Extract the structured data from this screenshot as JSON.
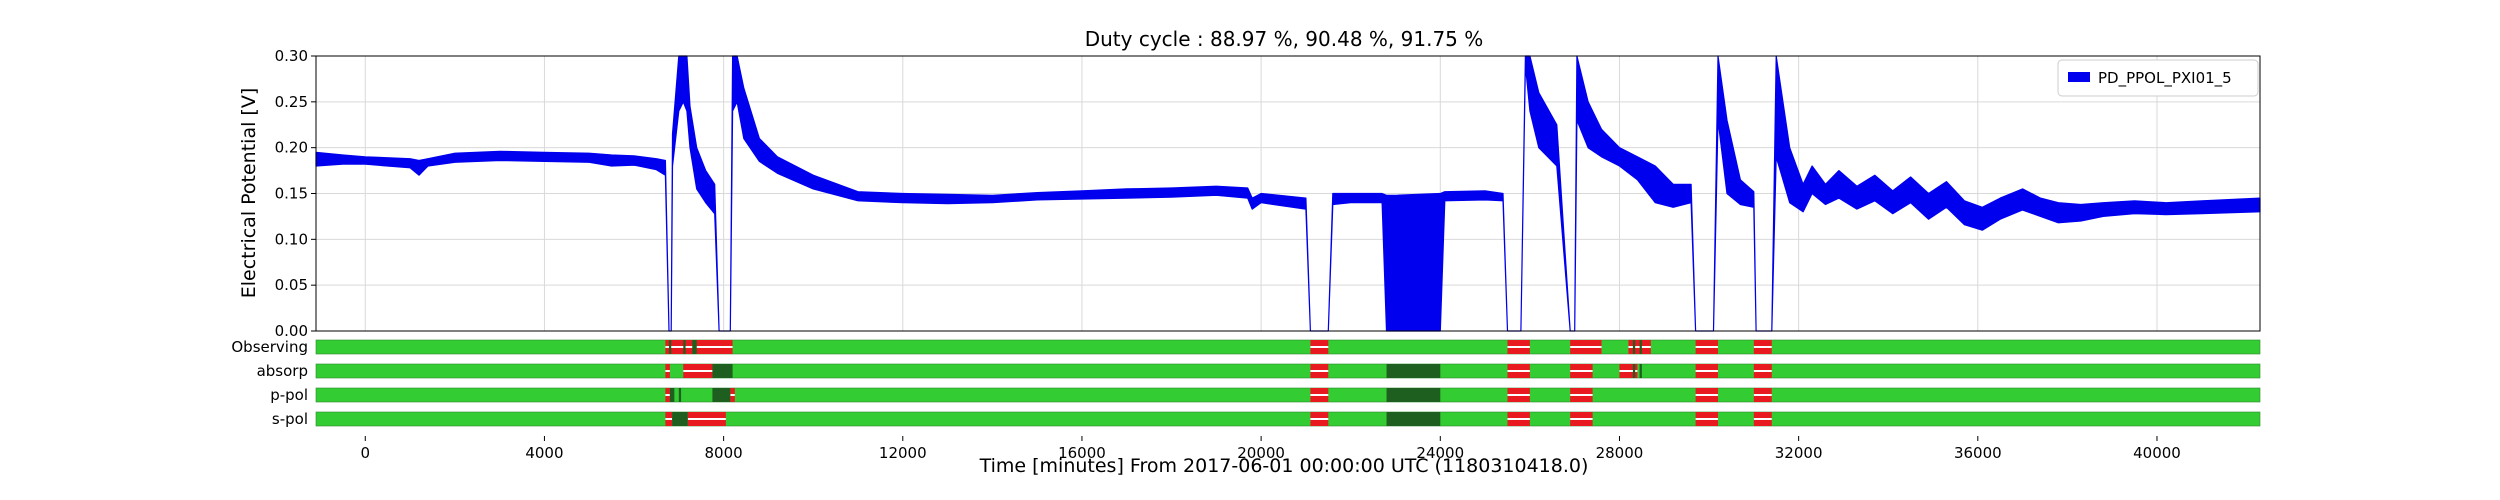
{
  "chart_data": {
    "type": "line",
    "title": "Duty cycle : 88.97 %, 90.48 %, 91.75 %",
    "xlabel": "Time [minutes] From 2017-06-01 00:00:00 UTC (1180310418.0)",
    "ylabel": "Electrical Potential [V]",
    "xlim": [
      -1100,
      42300
    ],
    "ylim": [
      0.0,
      0.3
    ],
    "xticks": [
      0,
      4000,
      8000,
      12000,
      16000,
      20000,
      24000,
      28000,
      32000,
      36000,
      40000
    ],
    "yticks": [
      "0.00",
      "0.05",
      "0.10",
      "0.15",
      "0.20",
      "0.25",
      "0.30"
    ],
    "grid": true,
    "legend": {
      "position": "top-right",
      "entries": [
        "PD_PPOL_PXI01_5"
      ]
    },
    "colors": {
      "series": "#0000ee",
      "state_on": "#33cc33",
      "state_off": "#e8191f",
      "state_dark": "#1e5e1e",
      "grid": "#d9d9d9"
    },
    "series": [
      {
        "name": "PD_PPOL_PXI01_5",
        "band": [
          [
            -1100,
            0.18,
            0.195
          ],
          [
            -500,
            0.182,
            0.192
          ],
          [
            0,
            0.182,
            0.19
          ],
          [
            1000,
            0.178,
            0.188
          ],
          [
            1200,
            0.17,
            0.186
          ],
          [
            1400,
            0.18,
            0.188
          ],
          [
            2000,
            0.184,
            0.194
          ],
          [
            3000,
            0.186,
            0.196
          ],
          [
            4000,
            0.185,
            0.195
          ],
          [
            5000,
            0.184,
            0.194
          ],
          [
            5500,
            0.18,
            0.192
          ],
          [
            6000,
            0.181,
            0.191
          ],
          [
            6500,
            0.176,
            0.188
          ],
          [
            6700,
            0.17,
            0.186
          ],
          [
            6780,
            0.0,
            0.0
          ],
          [
            6830,
            0.0,
            0.0
          ],
          [
            6860,
            0.18,
            0.215
          ],
          [
            7000,
            0.24,
            0.3
          ],
          [
            7100,
            0.25,
            0.3
          ],
          [
            7180,
            0.24,
            0.3
          ],
          [
            7250,
            0.2,
            0.245
          ],
          [
            7400,
            0.155,
            0.2
          ],
          [
            7600,
            0.14,
            0.175
          ],
          [
            7800,
            0.128,
            0.16
          ],
          [
            7900,
            0.0,
            0.0
          ],
          [
            8150,
            0.0,
            0.0
          ],
          [
            8200,
            0.24,
            0.3
          ],
          [
            8300,
            0.25,
            0.3
          ],
          [
            8450,
            0.21,
            0.265
          ],
          [
            8800,
            0.185,
            0.21
          ],
          [
            9200,
            0.172,
            0.19
          ],
          [
            10000,
            0.155,
            0.17
          ],
          [
            11000,
            0.142,
            0.152
          ],
          [
            12000,
            0.14,
            0.15
          ],
          [
            13000,
            0.139,
            0.149
          ],
          [
            14000,
            0.14,
            0.148
          ],
          [
            15000,
            0.143,
            0.151
          ],
          [
            16000,
            0.144,
            0.153
          ],
          [
            17000,
            0.145,
            0.155
          ],
          [
            18000,
            0.146,
            0.156
          ],
          [
            19000,
            0.148,
            0.158
          ],
          [
            19700,
            0.145,
            0.156
          ],
          [
            19800,
            0.133,
            0.145
          ],
          [
            20000,
            0.14,
            0.15
          ],
          [
            21000,
            0.133,
            0.145
          ],
          [
            21100,
            0.0,
            0.0
          ],
          [
            21500,
            0.0,
            0.0
          ],
          [
            21600,
            0.138,
            0.15
          ],
          [
            22000,
            0.14,
            0.15
          ],
          [
            22700,
            0.14,
            0.15
          ],
          [
            22800,
            0.0,
            0.148
          ],
          [
            23000,
            0.0,
            0.148
          ],
          [
            24000,
            0.0,
            0.15
          ],
          [
            24100,
            0.142,
            0.152
          ],
          [
            25000,
            0.143,
            0.153
          ],
          [
            25400,
            0.142,
            0.15
          ],
          [
            25500,
            0.0,
            0.0
          ],
          [
            25800,
            0.0,
            0.0
          ],
          [
            25900,
            0.29,
            0.3
          ],
          [
            26000,
            0.24,
            0.3
          ],
          [
            26200,
            0.2,
            0.26
          ],
          [
            26600,
            0.18,
            0.225
          ],
          [
            26900,
            0.0,
            0.0
          ],
          [
            27000,
            0.0,
            0.0
          ],
          [
            27050,
            0.23,
            0.3
          ],
          [
            27300,
            0.2,
            0.25
          ],
          [
            27600,
            0.19,
            0.22
          ],
          [
            28000,
            0.18,
            0.2
          ],
          [
            28400,
            0.165,
            0.19
          ],
          [
            28800,
            0.14,
            0.18
          ],
          [
            29200,
            0.135,
            0.16
          ],
          [
            29600,
            0.14,
            0.16
          ],
          [
            29700,
            0.0,
            0.0
          ],
          [
            30100,
            0.0,
            0.0
          ],
          [
            30200,
            0.23,
            0.3
          ],
          [
            30400,
            0.15,
            0.23
          ],
          [
            30700,
            0.138,
            0.165
          ],
          [
            31000,
            0.135,
            0.152
          ],
          [
            31050,
            0.0,
            0.0
          ],
          [
            31400,
            0.0,
            0.0
          ],
          [
            31500,
            0.19,
            0.3
          ],
          [
            31800,
            0.14,
            0.2
          ],
          [
            32100,
            0.13,
            0.16
          ],
          [
            32300,
            0.15,
            0.18
          ],
          [
            32600,
            0.138,
            0.16
          ],
          [
            32900,
            0.145,
            0.175
          ],
          [
            33300,
            0.133,
            0.158
          ],
          [
            33700,
            0.142,
            0.17
          ],
          [
            34100,
            0.128,
            0.153
          ],
          [
            34500,
            0.14,
            0.168
          ],
          [
            34900,
            0.122,
            0.15
          ],
          [
            35300,
            0.135,
            0.163
          ],
          [
            35700,
            0.116,
            0.142
          ],
          [
            36100,
            0.11,
            0.135
          ],
          [
            36500,
            0.122,
            0.145
          ],
          [
            37000,
            0.132,
            0.155
          ],
          [
            37400,
            0.125,
            0.145
          ],
          [
            37800,
            0.118,
            0.14
          ],
          [
            38300,
            0.12,
            0.138
          ],
          [
            38800,
            0.125,
            0.14
          ],
          [
            39500,
            0.128,
            0.142
          ],
          [
            40200,
            0.127,
            0.14
          ],
          [
            41000,
            0.128,
            0.142
          ],
          [
            42300,
            0.13,
            0.145
          ]
        ]
      }
    ],
    "state_segments": [
      {
        "label": "Observing",
        "off": [
          [
            6700,
            8200
          ],
          [
            21100,
            21500
          ],
          [
            25500,
            26000
          ],
          [
            26900,
            27600
          ],
          [
            28200,
            28700
          ],
          [
            29700,
            30200
          ],
          [
            31000,
            31400
          ]
        ],
        "dark": [
          [
            6780,
            6830
          ],
          [
            7100,
            7150
          ],
          [
            7300,
            7400
          ],
          [
            28300,
            28350
          ],
          [
            28450,
            28500
          ]
        ]
      },
      {
        "label": "absorp",
        "off": [
          [
            6700,
            6800
          ],
          [
            7100,
            7750
          ],
          [
            21100,
            21500
          ],
          [
            25500,
            26000
          ],
          [
            26900,
            27400
          ],
          [
            28000,
            28400
          ],
          [
            29700,
            30200
          ],
          [
            31000,
            31400
          ]
        ],
        "dark": [
          [
            7750,
            8200
          ],
          [
            22800,
            24000
          ],
          [
            28300,
            28350
          ],
          [
            28450,
            28500
          ]
        ]
      },
      {
        "label": "p-pol",
        "off": [
          [
            6700,
            6800
          ],
          [
            8150,
            8250
          ],
          [
            21100,
            21500
          ],
          [
            25500,
            26000
          ],
          [
            26900,
            27400
          ],
          [
            29700,
            30200
          ],
          [
            31000,
            31400
          ]
        ],
        "dark": [
          [
            6800,
            6900
          ],
          [
            7000,
            7050
          ],
          [
            7750,
            8150
          ],
          [
            22800,
            24000
          ]
        ]
      },
      {
        "label": "s-pol",
        "off": [
          [
            6700,
            6850
          ],
          [
            7200,
            8050
          ],
          [
            21100,
            21500
          ],
          [
            25500,
            26000
          ],
          [
            26900,
            27400
          ],
          [
            29700,
            30200
          ],
          [
            31000,
            31400
          ]
        ],
        "dark": [
          [
            6850,
            7200
          ],
          [
            22800,
            24000
          ]
        ]
      }
    ]
  }
}
